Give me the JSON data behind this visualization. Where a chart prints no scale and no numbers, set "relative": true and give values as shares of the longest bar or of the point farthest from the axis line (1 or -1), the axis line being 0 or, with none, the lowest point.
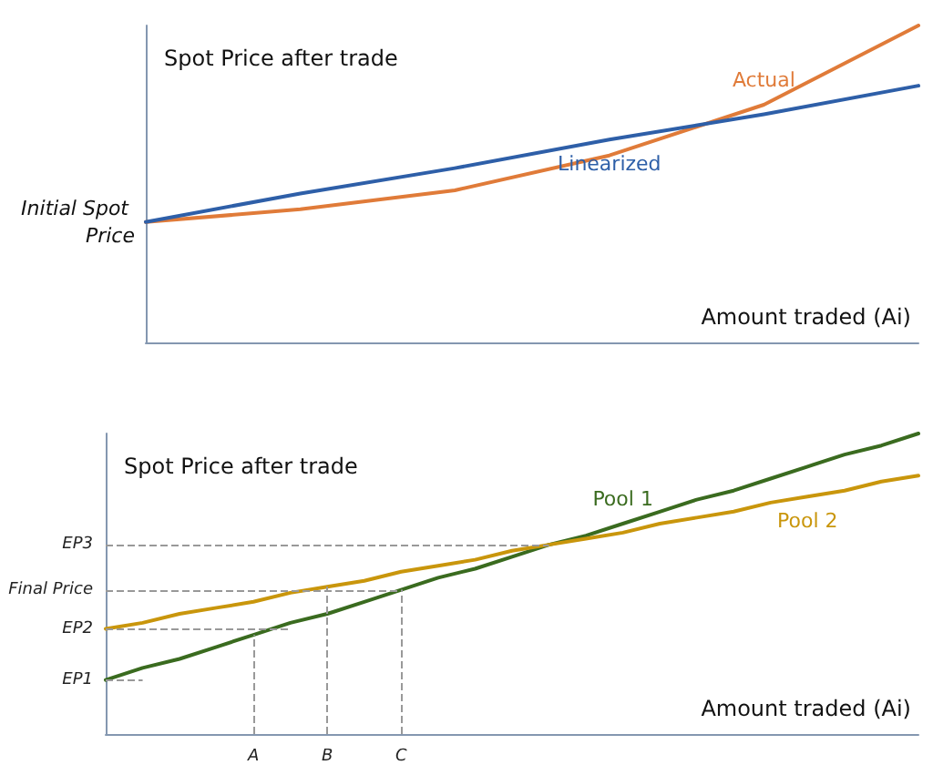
{
  "chart_data": [
    {
      "type": "line",
      "relative": true,
      "ylabel": "Spot Price after trade",
      "xlabel": "Amount traded (Ai)",
      "grid": false,
      "legend": false,
      "marker": "none",
      "line_style": "solid",
      "categories": [
        null,
        null,
        null,
        null,
        null,
        null
      ],
      "series": [
        {
          "name": "Actual",
          "color": "#e07b39",
          "values": [
            0.38,
            0.42,
            0.48,
            0.59,
            0.75,
            1
          ]
        },
        {
          "name": "Linearized",
          "color": "#2e5fa8",
          "values": [
            0.38,
            0.47,
            0.55,
            0.64,
            0.72,
            0.81
          ]
        }
      ],
      "annotations": [
        "Initial Spot Price"
      ]
    },
    {
      "type": "line",
      "relative": true,
      "ylabel": "Spot Price after trade",
      "xlabel": "Amount traded (Ai)",
      "grid": false,
      "legend": false,
      "marker": "none",
      "line_style": "solid",
      "categories": [
        null,
        null,
        null,
        null,
        "A",
        null,
        "B",
        null,
        "C",
        null,
        null,
        null,
        null,
        null,
        null,
        null,
        null,
        null,
        null,
        null,
        null,
        null,
        null
      ],
      "series": [
        {
          "name": "Pool 1",
          "color": "#3a6b1f",
          "values": [
            0.18,
            0.22,
            0.25,
            0.29,
            0.33,
            0.37,
            0.4,
            0.44,
            0.48,
            0.52,
            0.55,
            0.59,
            0.63,
            0.66,
            0.7,
            0.74,
            0.78,
            0.81,
            0.85,
            0.89,
            0.93,
            0.96,
            1
          ]
        },
        {
          "name": "Pool 2",
          "color": "#c9960c",
          "values": [
            0.35,
            0.37,
            0.4,
            0.42,
            0.44,
            0.47,
            0.49,
            0.51,
            0.54,
            0.56,
            0.58,
            0.61,
            0.63,
            0.65,
            0.67,
            0.7,
            0.72,
            0.74,
            0.77,
            0.79,
            0.81,
            0.84,
            0.86
          ]
        }
      ],
      "ref_lines": [
        {
          "axis": "y",
          "value": 0.63,
          "label": "EP3",
          "color": "#999999",
          "line_style": "dashed"
        },
        {
          "axis": "y",
          "value": 0.48,
          "label": "Final Price",
          "color": "#999999",
          "line_style": "dashed"
        },
        {
          "axis": "y",
          "value": 0.35,
          "label": "EP2",
          "color": "#999999",
          "line_style": "dashed"
        },
        {
          "axis": "y",
          "value": 0.18,
          "label": "EP1",
          "color": "#999999",
          "line_style": "dashed"
        },
        {
          "axis": "x",
          "value": "A",
          "color": "#999999",
          "line_style": "dashed"
        },
        {
          "axis": "x",
          "value": "B",
          "color": "#999999",
          "line_style": "dashed"
        },
        {
          "axis": "x",
          "value": "C",
          "color": "#999999",
          "line_style": "dashed"
        }
      ]
    }
  ]
}
